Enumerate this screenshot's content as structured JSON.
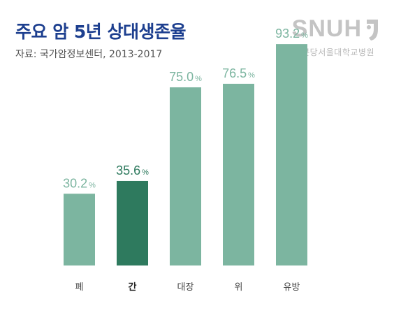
{
  "title": "주요 암 5년 상대생존율",
  "source": "자료: 국가암정보센터, 2013-2017",
  "logo": {
    "text": "SNUH",
    "subtitle": "분당서울대학교병원",
    "icon": "snuh-emblem-icon"
  },
  "colors": {
    "title": "#1d3f8f",
    "bar": "#7cb5a0",
    "highlight": "#2e7a5e",
    "label": "#7cb5a0",
    "highlight_label": "#2e7a5e"
  },
  "chart_data": {
    "type": "bar",
    "categories": [
      "폐",
      "간",
      "대장",
      "위",
      "유방"
    ],
    "values": [
      30.2,
      35.6,
      75.0,
      76.5,
      93.2
    ],
    "value_labels": [
      "30.2",
      "35.6",
      "75.0",
      "76.5",
      "93.2"
    ],
    "unit": "%",
    "highlight_index": 1,
    "ylim": [
      0,
      100
    ],
    "title": "주요 암 5년 상대생존율",
    "xlabel": "",
    "ylabel": "",
    "grid": false,
    "legend": "none"
  }
}
